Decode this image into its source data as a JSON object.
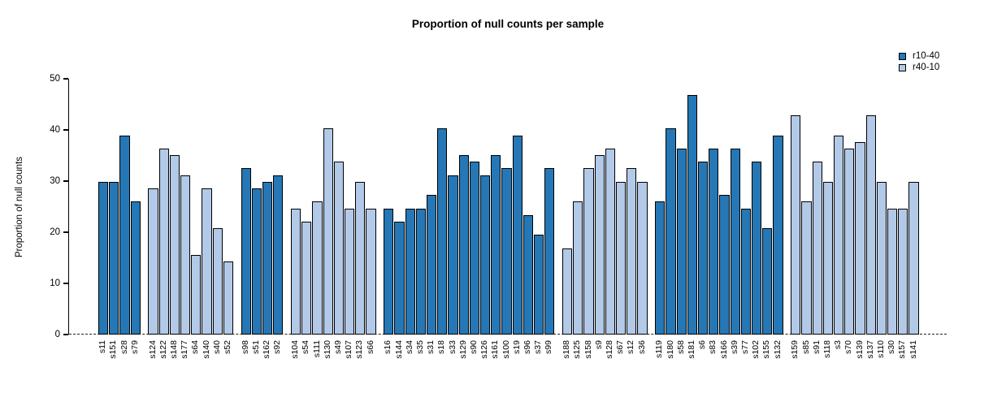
{
  "chart_data": {
    "type": "bar",
    "title": "Proportion of null counts per sample",
    "ylabel": "Proportion of null counts",
    "xlabel": "",
    "ylim": [
      0,
      50
    ],
    "yticks": [
      0,
      10,
      20,
      30,
      40,
      50
    ],
    "grid": false,
    "legend_position": "top-right",
    "zero_line_style": "dashed",
    "bar_border_color": "#000000",
    "series": [
      {
        "name": "r10-40",
        "color": "#2577b5"
      },
      {
        "name": "r40-10",
        "color": "#b2c9e8"
      }
    ],
    "bars": [
      {
        "label": "s11",
        "value": 29.87,
        "series": "r10-40"
      },
      {
        "label": "s151",
        "value": 29.87,
        "series": "r10-40"
      },
      {
        "label": "s28",
        "value": 38.96,
        "series": "r10-40"
      },
      {
        "label": "s79",
        "value": 25.97,
        "series": "r10-40"
      },
      {
        "label": "s124",
        "value": 28.57,
        "series": "r40-10"
      },
      {
        "label": "s122",
        "value": 36.36,
        "series": "r40-10"
      },
      {
        "label": "s148",
        "value": 35.06,
        "series": "r40-10"
      },
      {
        "label": "s177",
        "value": 31.17,
        "series": "r40-10"
      },
      {
        "label": "s64",
        "value": 15.58,
        "series": "r40-10"
      },
      {
        "label": "s140",
        "value": 28.57,
        "series": "r40-10"
      },
      {
        "label": "s40",
        "value": 20.78,
        "series": "r40-10"
      },
      {
        "label": "s52",
        "value": 14.29,
        "series": "r40-10"
      },
      {
        "label": "s98",
        "value": 32.47,
        "series": "r10-40"
      },
      {
        "label": "s51",
        "value": 28.57,
        "series": "r10-40"
      },
      {
        "label": "s162",
        "value": 29.87,
        "series": "r10-40"
      },
      {
        "label": "s92",
        "value": 31.17,
        "series": "r10-40"
      },
      {
        "label": "s104",
        "value": 24.68,
        "series": "r40-10"
      },
      {
        "label": "s54",
        "value": 22.08,
        "series": "r40-10"
      },
      {
        "label": "s111",
        "value": 25.97,
        "series": "r40-10"
      },
      {
        "label": "s130",
        "value": 40.26,
        "series": "r40-10"
      },
      {
        "label": "s49",
        "value": 33.77,
        "series": "r40-10"
      },
      {
        "label": "s107",
        "value": 24.68,
        "series": "r40-10"
      },
      {
        "label": "s123",
        "value": 29.87,
        "series": "r40-10"
      },
      {
        "label": "s66",
        "value": 24.68,
        "series": "r40-10"
      },
      {
        "label": "s16",
        "value": 24.68,
        "series": "r10-40"
      },
      {
        "label": "s144",
        "value": 22.08,
        "series": "r10-40"
      },
      {
        "label": "s34",
        "value": 24.68,
        "series": "r10-40"
      },
      {
        "label": "s35",
        "value": 24.68,
        "series": "r10-40"
      },
      {
        "label": "s31",
        "value": 27.27,
        "series": "r10-40"
      },
      {
        "label": "s18",
        "value": 40.26,
        "series": "r10-40"
      },
      {
        "label": "s33",
        "value": 31.17,
        "series": "r10-40"
      },
      {
        "label": "s129",
        "value": 35.06,
        "series": "r10-40"
      },
      {
        "label": "s90",
        "value": 33.77,
        "series": "r10-40"
      },
      {
        "label": "s126",
        "value": 31.17,
        "series": "r10-40"
      },
      {
        "label": "s161",
        "value": 35.06,
        "series": "r10-40"
      },
      {
        "label": "s100",
        "value": 32.47,
        "series": "r10-40"
      },
      {
        "label": "s19",
        "value": 38.96,
        "series": "r10-40"
      },
      {
        "label": "s96",
        "value": 23.38,
        "series": "r10-40"
      },
      {
        "label": "s37",
        "value": 19.48,
        "series": "r10-40"
      },
      {
        "label": "s99",
        "value": 32.47,
        "series": "r10-40"
      },
      {
        "label": "s188",
        "value": 16.88,
        "series": "r40-10"
      },
      {
        "label": "s125",
        "value": 25.97,
        "series": "r40-10"
      },
      {
        "label": "s158",
        "value": 32.47,
        "series": "r40-10"
      },
      {
        "label": "s9",
        "value": 35.06,
        "series": "r40-10"
      },
      {
        "label": "s128",
        "value": 36.36,
        "series": "r40-10"
      },
      {
        "label": "s67",
        "value": 29.87,
        "series": "r40-10"
      },
      {
        "label": "s12",
        "value": 32.47,
        "series": "r40-10"
      },
      {
        "label": "s36",
        "value": 29.87,
        "series": "r40-10"
      },
      {
        "label": "s119",
        "value": 25.97,
        "series": "r10-40"
      },
      {
        "label": "s180",
        "value": 40.26,
        "series": "r10-40"
      },
      {
        "label": "s58",
        "value": 36.36,
        "series": "r10-40"
      },
      {
        "label": "s181",
        "value": 46.75,
        "series": "r10-40"
      },
      {
        "label": "s6",
        "value": 33.77,
        "series": "r10-40"
      },
      {
        "label": "s83",
        "value": 36.36,
        "series": "r10-40"
      },
      {
        "label": "s166",
        "value": 27.27,
        "series": "r10-40"
      },
      {
        "label": "s39",
        "value": 36.36,
        "series": "r10-40"
      },
      {
        "label": "s77",
        "value": 24.68,
        "series": "r10-40"
      },
      {
        "label": "s102",
        "value": 33.77,
        "series": "r10-40"
      },
      {
        "label": "s155",
        "value": 20.78,
        "series": "r10-40"
      },
      {
        "label": "s132",
        "value": 38.96,
        "series": "r10-40"
      },
      {
        "label": "s159",
        "value": 42.86,
        "series": "r40-10"
      },
      {
        "label": "s85",
        "value": 25.97,
        "series": "r40-10"
      },
      {
        "label": "s91",
        "value": 33.77,
        "series": "r40-10"
      },
      {
        "label": "s118",
        "value": 29.87,
        "series": "r40-10"
      },
      {
        "label": "s3",
        "value": 38.96,
        "series": "r40-10"
      },
      {
        "label": "s70",
        "value": 36.36,
        "series": "r40-10"
      },
      {
        "label": "s139",
        "value": 37.66,
        "series": "r40-10"
      },
      {
        "label": "s137",
        "value": 42.86,
        "series": "r40-10"
      },
      {
        "label": "s110",
        "value": 29.87,
        "series": "r40-10"
      },
      {
        "label": "s30",
        "value": 24.68,
        "series": "r40-10"
      },
      {
        "label": "s157",
        "value": 24.68,
        "series": "r40-10"
      },
      {
        "label": "s141",
        "value": 29.87,
        "series": "r40-10"
      }
    ]
  }
}
